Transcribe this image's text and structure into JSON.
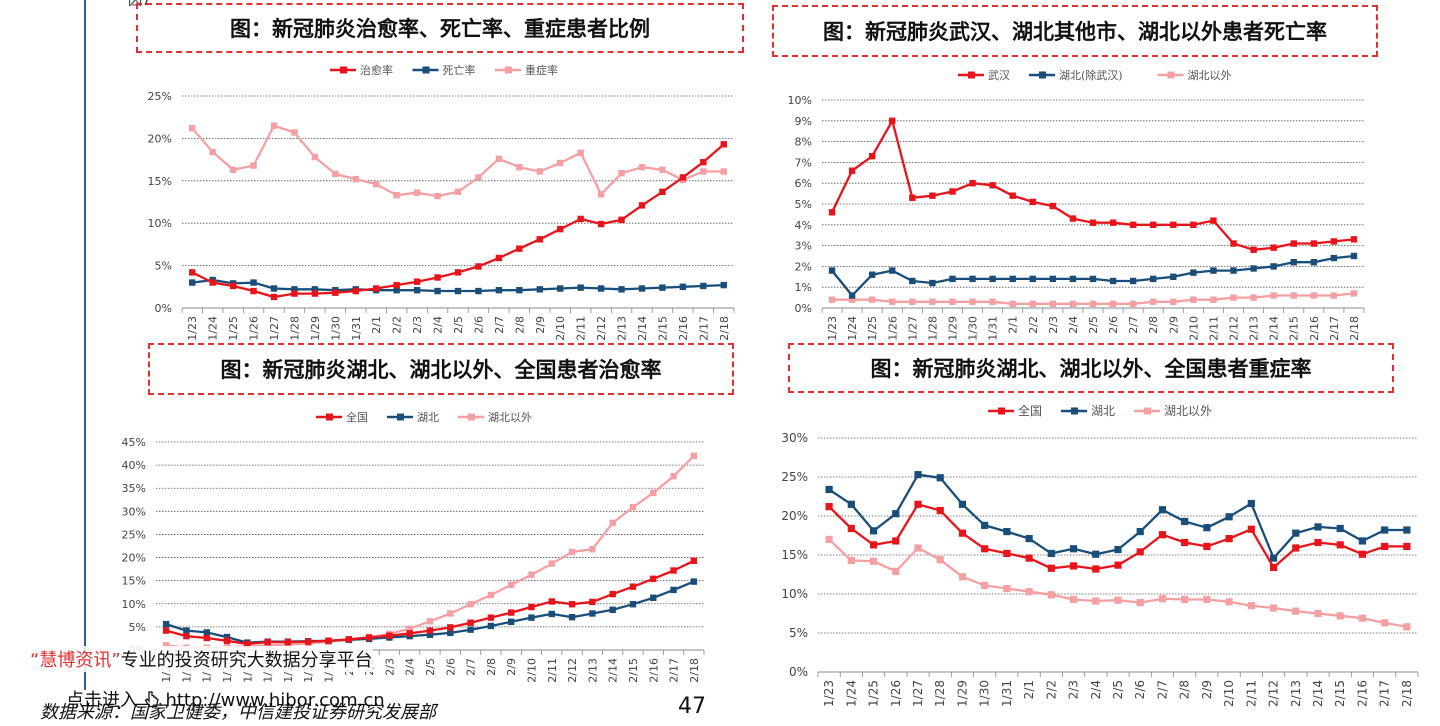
{
  "page": {
    "top_fragment": "因7",
    "footer": {
      "quote_open": "“",
      "brand": "慧博资讯",
      "quote_close": "”",
      "tagline": "专业的投资研究大数据分享平台",
      "link_prefix": "点击进入",
      "link_url": "http://www.hibor.com.cn",
      "source": "数据来源：国家卫健委，中信建投证券研究发展部",
      "page_number": "47"
    }
  },
  "chart_data": [
    {
      "type": "line",
      "title": "图：新冠肺炎治愈率、死亡率、重症患者比例",
      "categories": [
        "1/23",
        "1/24",
        "1/25",
        "1/26",
        "1/27",
        "1/28",
        "1/29",
        "1/30",
        "1/31",
        "2/1",
        "2/2",
        "2/3",
        "2/4",
        "2/5",
        "2/6",
        "2/7",
        "2/8",
        "2/9",
        "2/10",
        "2/11",
        "2/12",
        "2/13",
        "2/14",
        "2/15",
        "2/16",
        "2/17",
        "2/18"
      ],
      "y_ticks": [
        "0%",
        "5%",
        "10%",
        "15%",
        "20%",
        "25%"
      ],
      "ylim": [
        0,
        25
      ],
      "legend_position": "top",
      "series": [
        {
          "name": "治愈率",
          "color": "#e8141b",
          "values": [
            4.2,
            3.0,
            2.6,
            2.0,
            1.3,
            1.7,
            1.7,
            1.8,
            2.0,
            2.3,
            2.7,
            3.1,
            3.6,
            4.2,
            4.9,
            5.9,
            7.0,
            8.1,
            9.3,
            10.5,
            9.9,
            10.4,
            12.1,
            13.7,
            15.4,
            17.2,
            19.3
          ]
        },
        {
          "name": "死亡率",
          "color": "#1a4e7a",
          "values": [
            3.0,
            3.3,
            2.9,
            3.0,
            2.3,
            2.2,
            2.2,
            2.1,
            2.2,
            2.1,
            2.1,
            2.1,
            2.0,
            2.0,
            2.0,
            2.1,
            2.1,
            2.2,
            2.3,
            2.4,
            2.3,
            2.2,
            2.3,
            2.4,
            2.5,
            2.6,
            2.7
          ]
        },
        {
          "name": "重症率",
          "color": "#f4a0a3",
          "values": [
            21.2,
            18.4,
            16.3,
            16.8,
            21.5,
            20.7,
            17.8,
            15.8,
            15.2,
            14.6,
            13.3,
            13.6,
            13.2,
            13.7,
            15.4,
            17.6,
            16.6,
            16.1,
            17.1,
            18.3,
            13.4,
            15.9,
            16.6,
            16.3,
            15.1,
            16.1,
            16.1
          ]
        }
      ]
    },
    {
      "type": "line",
      "title": "图：新冠肺炎武汉、湖北其他市、湖北以外患者死亡率",
      "categories": [
        "1/23",
        "1/24",
        "1/25",
        "1/26",
        "1/27",
        "1/28",
        "1/29",
        "1/30",
        "1/31",
        "2/1",
        "2/2",
        "2/3",
        "2/4",
        "2/5",
        "2/6",
        "2/7",
        "2/8",
        "2/9",
        "2/10",
        "2/11",
        "2/12",
        "2/13",
        "2/14",
        "2/15",
        "2/16",
        "2/17",
        "2/18"
      ],
      "y_ticks": [
        "0%",
        "1%",
        "2%",
        "3%",
        "4%",
        "5%",
        "6%",
        "7%",
        "8%",
        "9%",
        "10%"
      ],
      "ylim": [
        0,
        10
      ],
      "legend_position": "top",
      "series": [
        {
          "name": "武汉",
          "color": "#e8141b",
          "values": [
            4.6,
            6.6,
            7.3,
            9.0,
            5.3,
            5.4,
            5.6,
            6.0,
            5.9,
            5.4,
            5.1,
            4.9,
            4.3,
            4.1,
            4.1,
            4.0,
            4.0,
            4.0,
            4.0,
            4.2,
            3.1,
            2.8,
            2.9,
            3.1,
            3.1,
            3.2,
            3.3
          ]
        },
        {
          "name": "湖北(除武汉)",
          "color": "#1a4e7a",
          "values": [
            1.8,
            0.6,
            1.6,
            1.8,
            1.3,
            1.2,
            1.4,
            1.4,
            1.4,
            1.4,
            1.4,
            1.4,
            1.4,
            1.4,
            1.3,
            1.3,
            1.4,
            1.5,
            1.7,
            1.8,
            1.8,
            1.9,
            2.0,
            2.2,
            2.2,
            2.4,
            2.5
          ]
        },
        {
          "name": "湖北以外",
          "color": "#f4a0a3",
          "values": [
            0.4,
            0.4,
            0.4,
            0.3,
            0.3,
            0.3,
            0.3,
            0.3,
            0.3,
            0.2,
            0.2,
            0.2,
            0.2,
            0.2,
            0.2,
            0.2,
            0.3,
            0.3,
            0.4,
            0.4,
            0.5,
            0.5,
            0.6,
            0.6,
            0.6,
            0.6,
            0.7
          ]
        }
      ]
    },
    {
      "type": "line",
      "title": "图：新冠肺炎湖北、湖北以外、全国患者治愈率",
      "categories": [
        "1/23",
        "1/24",
        "1/25",
        "1/26",
        "1/27",
        "1/28",
        "1/29",
        "1/30",
        "1/31",
        "2/1",
        "2/2",
        "2/3",
        "2/4",
        "2/5",
        "2/6",
        "2/7",
        "2/8",
        "2/9",
        "2/10",
        "2/11",
        "2/12",
        "2/13",
        "2/14",
        "2/15",
        "2/16",
        "2/17",
        "2/18"
      ],
      "y_ticks": [
        "0%",
        "5%",
        "10%",
        "15%",
        "20%",
        "25%",
        "30%",
        "35%",
        "40%",
        "45%"
      ],
      "ylim": [
        0,
        45
      ],
      "legend_position": "top",
      "series": [
        {
          "name": "全国",
          "color": "#e8141b",
          "values": [
            4.2,
            3.0,
            2.6,
            2.0,
            1.3,
            1.7,
            1.7,
            1.8,
            2.0,
            2.3,
            2.7,
            3.1,
            3.6,
            4.2,
            4.9,
            5.9,
            7.0,
            8.1,
            9.3,
            10.5,
            9.9,
            10.4,
            12.1,
            13.7,
            15.4,
            17.2,
            19.3
          ]
        },
        {
          "name": "湖北",
          "color": "#1a4e7a",
          "values": [
            5.6,
            4.2,
            3.8,
            2.8,
            1.6,
            1.8,
            1.8,
            1.9,
            2.0,
            2.2,
            2.4,
            2.7,
            3.0,
            3.3,
            3.7,
            4.4,
            5.2,
            6.1,
            7.0,
            7.8,
            7.1,
            7.9,
            8.7,
            9.9,
            11.3,
            13.0,
            14.8
          ]
        },
        {
          "name": "湖北以外",
          "color": "#f4a0a3",
          "values": [
            1.0,
            0.5,
            0.5,
            0.6,
            0.8,
            1.0,
            1.2,
            1.4,
            1.8,
            2.3,
            2.8,
            3.5,
            4.6,
            6.2,
            7.9,
            9.9,
            11.9,
            14.1,
            16.3,
            18.7,
            21.2,
            21.8,
            27.5,
            30.9,
            34.0,
            37.6,
            42.0
          ]
        }
      ]
    },
    {
      "type": "line",
      "title": "图：新冠肺炎湖北、湖北以外、全国患者重症率",
      "categories": [
        "1/23",
        "1/24",
        "1/25",
        "1/26",
        "1/27",
        "1/28",
        "1/29",
        "1/30",
        "1/31",
        "2/1",
        "2/2",
        "2/3",
        "2/4",
        "2/5",
        "2/6",
        "2/7",
        "2/8",
        "2/9",
        "2/10",
        "2/11",
        "2/12",
        "2/13",
        "2/14",
        "2/15",
        "2/16",
        "2/17",
        "2/18"
      ],
      "y_ticks": [
        "0%",
        "5%",
        "10%",
        "15%",
        "20%",
        "25%",
        "30%"
      ],
      "ylim": [
        0,
        30
      ],
      "legend_position": "top",
      "series": [
        {
          "name": "全国",
          "color": "#e8141b",
          "values": [
            21.2,
            18.4,
            16.3,
            16.8,
            21.5,
            20.7,
            17.8,
            15.8,
            15.2,
            14.6,
            13.3,
            13.6,
            13.2,
            13.7,
            15.4,
            17.6,
            16.6,
            16.1,
            17.1,
            18.3,
            13.4,
            15.9,
            16.6,
            16.3,
            15.1,
            16.1,
            16.1
          ]
        },
        {
          "name": "湖北",
          "color": "#1a4e7a",
          "values": [
            23.4,
            21.5,
            18.1,
            20.3,
            25.3,
            24.9,
            21.5,
            18.8,
            18.0,
            17.1,
            15.2,
            15.8,
            15.1,
            15.7,
            18.0,
            20.8,
            19.3,
            18.5,
            19.9,
            21.6,
            14.6,
            17.8,
            18.6,
            18.4,
            16.8,
            18.2,
            18.2
          ]
        },
        {
          "name": "湖北以外",
          "color": "#f4a0a3",
          "values": [
            17.0,
            14.3,
            14.2,
            12.9,
            15.9,
            14.4,
            12.2,
            11.1,
            10.7,
            10.3,
            9.9,
            9.3,
            9.1,
            9.2,
            8.9,
            9.4,
            9.3,
            9.3,
            9.0,
            8.5,
            8.2,
            7.8,
            7.5,
            7.2,
            6.9,
            6.3,
            5.8
          ]
        }
      ]
    }
  ]
}
